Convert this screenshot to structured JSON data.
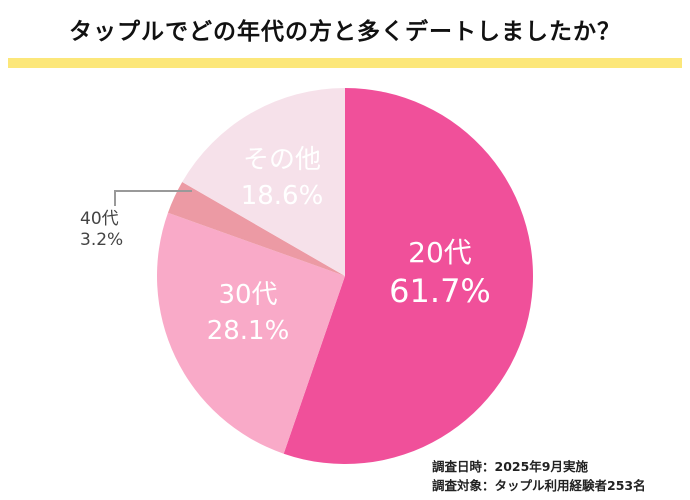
{
  "title": "タップルでどの年代の方と多くデートしましたか？",
  "accent_bar_color": "#fce77a",
  "chart_data": {
    "type": "pie",
    "start": "top",
    "direction": "clockwise",
    "slices": [
      {
        "label": "20代",
        "value": 61.7,
        "value_label": "61.7%",
        "color": "#f0509a",
        "label_color": "#ffffff"
      },
      {
        "label": "30代",
        "value": 28.1,
        "value_label": "28.1%",
        "color": "#f9aac8",
        "label_color": "#ffffff"
      },
      {
        "label": "40代",
        "value": 3.2,
        "value_label": "3.2%",
        "color": "#ec9aa4",
        "label_color": "#444444"
      },
      {
        "label": "その他",
        "value": 18.6,
        "value_label": "18.6%",
        "color": "#f6e1ea",
        "label_color": "#ffffff"
      }
    ]
  },
  "footer": {
    "date": "調査日時：2025年9月実施",
    "target": "調査対象：タップル利用経験者253名"
  }
}
